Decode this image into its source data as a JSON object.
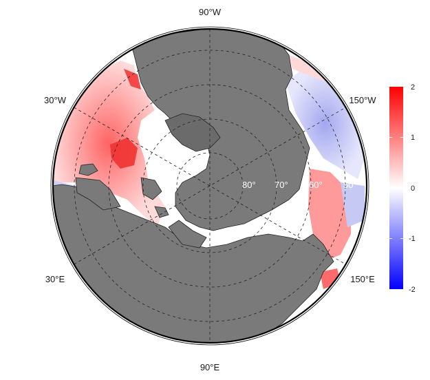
{
  "map": {
    "projection": "north-polar-stereographic",
    "land_color": "#7a7a7a",
    "graticule_style": "dashed",
    "longitude_labels": {
      "top": "90°W",
      "upper_left": "30°W",
      "upper_right": "150°W",
      "lower_left": "30°E",
      "lower_right": "150°E",
      "bottom": "90°E"
    },
    "latitude_labels": [
      "80°",
      "70°",
      "60°",
      "50°"
    ]
  },
  "colorbar": {
    "min": -2,
    "max": 2,
    "ticks": [
      "2",
      "1",
      "0",
      "-1",
      "-2"
    ],
    "colors": [
      "#ff0000",
      "#ffffff",
      "#0000ff"
    ]
  }
}
